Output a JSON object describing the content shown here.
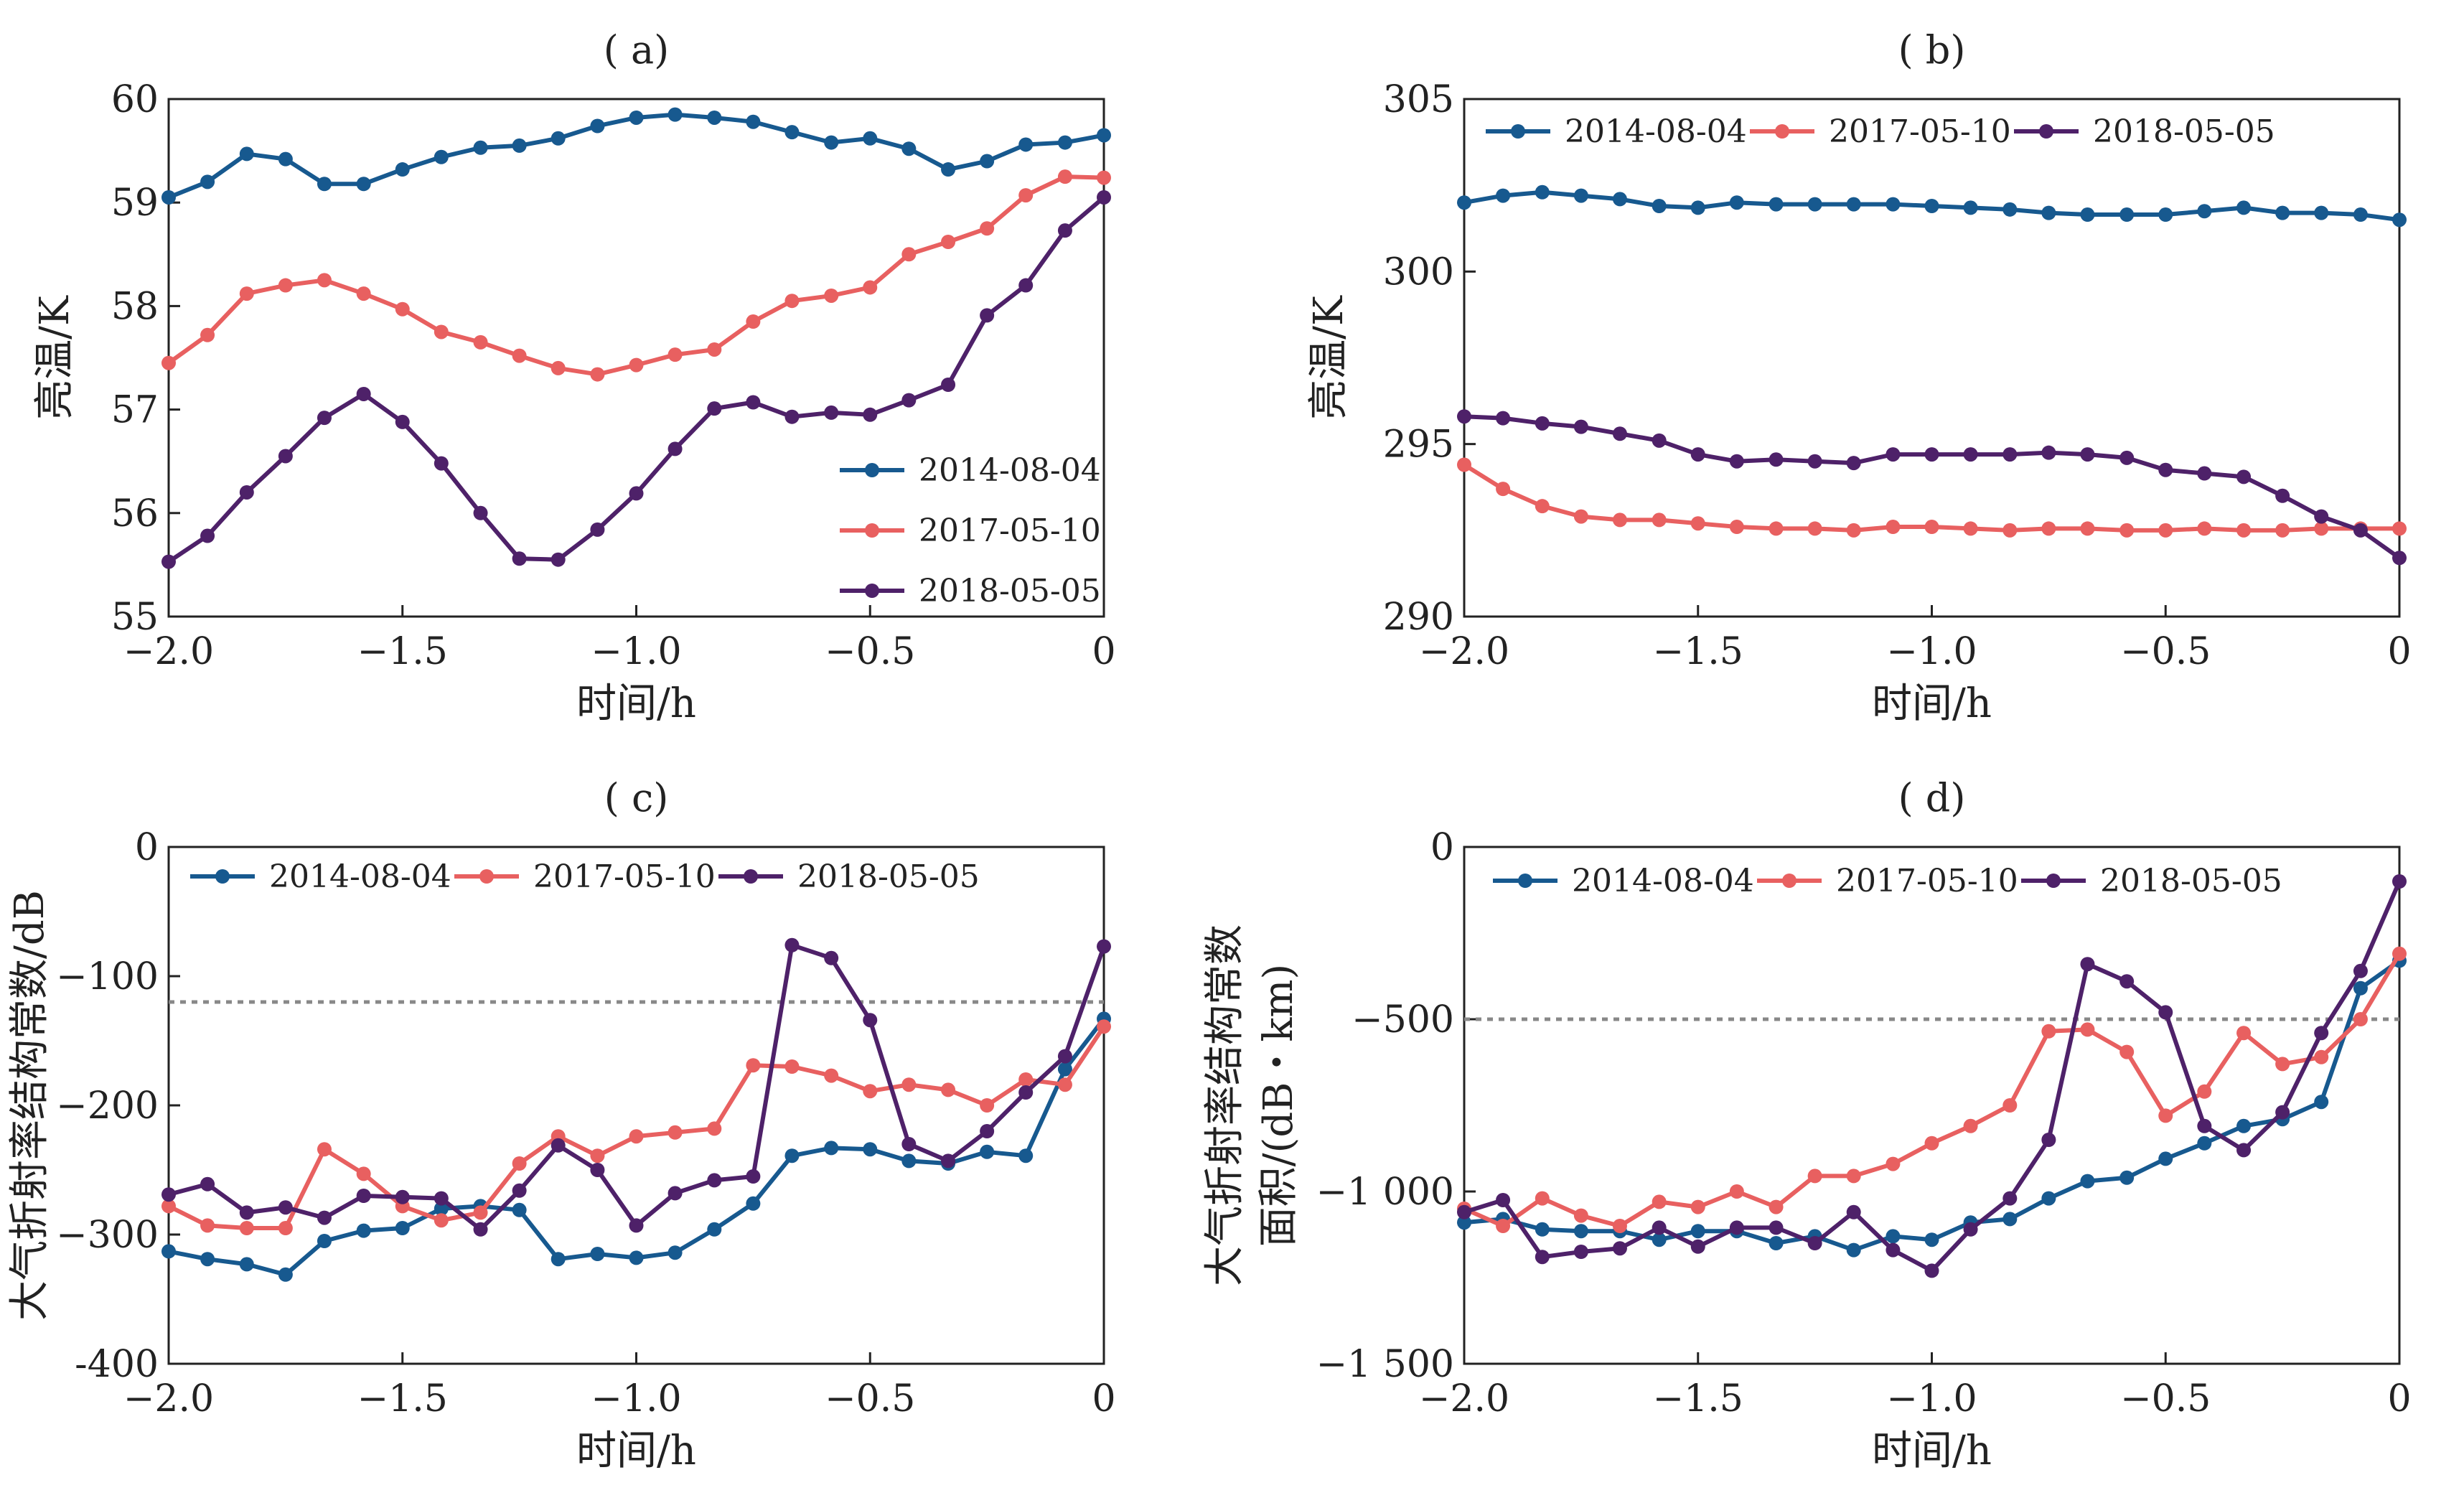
{
  "chart_data": [
    {
      "panel": "( a)",
      "type": "line",
      "xlabel": "时间/h",
      "ylabel": "亮温/K",
      "xlim": [
        -2.0,
        0
      ],
      "ylim": [
        55,
        60
      ],
      "xticks": [
        -2.0,
        -1.5,
        -1.0,
        -0.5,
        0
      ],
      "xtick_labels": [
        "−2.0",
        "−1.5",
        "−1.0",
        "−0.5",
        "0"
      ],
      "yticks": [
        55,
        56,
        57,
        58,
        59,
        60
      ],
      "ytick_labels": [
        "55",
        "56",
        "57",
        "58",
        "59",
        "60"
      ],
      "legend_position": "bottom-right",
      "x": [
        -2.0,
        -1.917,
        -1.833,
        -1.75,
        -1.667,
        -1.583,
        -1.5,
        -1.417,
        -1.333,
        -1.25,
        -1.167,
        -1.083,
        -1.0,
        -0.917,
        -0.833,
        -0.75,
        -0.667,
        -0.583,
        -0.5,
        -0.417,
        -0.333,
        -0.25,
        -0.167,
        -0.083,
        0
      ],
      "series": [
        {
          "name": "2014-08-04",
          "color": "#17598f",
          "values": [
            59.05,
            59.2,
            59.47,
            59.42,
            59.18,
            59.18,
            59.32,
            59.44,
            59.53,
            59.55,
            59.62,
            59.74,
            59.82,
            59.85,
            59.82,
            59.78,
            59.68,
            59.58,
            59.62,
            59.52,
            59.32,
            59.4,
            59.56,
            59.58,
            59.65
          ]
        },
        {
          "name": "2017-05-10",
          "color": "#e86060",
          "values": [
            57.45,
            57.72,
            58.12,
            58.2,
            58.25,
            58.12,
            57.97,
            57.75,
            57.65,
            57.52,
            57.4,
            57.34,
            57.43,
            57.53,
            57.58,
            57.85,
            58.05,
            58.1,
            58.18,
            58.5,
            58.62,
            58.75,
            59.07,
            59.25,
            59.24
          ]
        },
        {
          "name": "2018-05-05",
          "color": "#4e2169",
          "values": [
            55.53,
            55.78,
            56.2,
            56.55,
            56.92,
            57.15,
            56.88,
            56.48,
            56.0,
            55.56,
            55.55,
            55.84,
            56.19,
            56.62,
            57.01,
            57.07,
            56.93,
            56.97,
            56.95,
            57.09,
            57.24,
            57.91,
            58.2,
            58.73,
            59.05
          ]
        }
      ]
    },
    {
      "panel": "( b)",
      "type": "line",
      "xlabel": "时间/h",
      "ylabel": "亮温/K",
      "xlim": [
        -2.0,
        0
      ],
      "ylim": [
        290,
        305
      ],
      "xticks": [
        -2.0,
        -1.5,
        -1.0,
        -0.5,
        0
      ],
      "xtick_labels": [
        "−2.0",
        "−1.5",
        "−1.0",
        "−0.5",
        "0"
      ],
      "yticks": [
        290,
        295,
        300,
        305
      ],
      "ytick_labels": [
        "290",
        "295",
        "300",
        "305"
      ],
      "legend_position": "top",
      "x": [
        -2.0,
        -1.917,
        -1.833,
        -1.75,
        -1.667,
        -1.583,
        -1.5,
        -1.417,
        -1.333,
        -1.25,
        -1.167,
        -1.083,
        -1.0,
        -0.917,
        -0.833,
        -0.75,
        -0.667,
        -0.583,
        -0.5,
        -0.417,
        -0.333,
        -0.25,
        -0.167,
        -0.083,
        0
      ],
      "series": [
        {
          "name": "2014-08-04",
          "color": "#17598f",
          "values": [
            302.0,
            302.2,
            302.3,
            302.2,
            302.1,
            301.9,
            301.85,
            302.0,
            301.95,
            301.95,
            301.95,
            301.95,
            301.9,
            301.85,
            301.8,
            301.7,
            301.65,
            301.65,
            301.65,
            301.75,
            301.85,
            301.7,
            301.7,
            301.65,
            301.5
          ]
        },
        {
          "name": "2017-05-10",
          "color": "#e86060",
          "values": [
            294.4,
            293.7,
            293.2,
            292.9,
            292.8,
            292.8,
            292.7,
            292.6,
            292.55,
            292.55,
            292.5,
            292.6,
            292.6,
            292.55,
            292.5,
            292.55,
            292.55,
            292.5,
            292.5,
            292.55,
            292.5,
            292.5,
            292.55,
            292.55,
            292.55
          ]
        },
        {
          "name": "2018-05-05",
          "color": "#4e2169",
          "values": [
            295.8,
            295.75,
            295.6,
            295.5,
            295.3,
            295.1,
            294.7,
            294.5,
            294.55,
            294.5,
            294.45,
            294.7,
            294.7,
            294.7,
            294.7,
            294.75,
            294.7,
            294.6,
            294.25,
            294.15,
            294.05,
            293.5,
            292.9,
            292.5,
            291.7
          ]
        }
      ]
    },
    {
      "panel": "( c)",
      "type": "line",
      "xlabel": "时间/h",
      "ylabel": "大气折射率结构常数/dB",
      "xlim": [
        -2.0,
        0
      ],
      "ylim": [
        -400,
        0
      ],
      "xticks": [
        -2.0,
        -1.5,
        -1.0,
        -0.5,
        0
      ],
      "xtick_labels": [
        "−2.0",
        "−1.5",
        "−1.0",
        "−0.5",
        "0"
      ],
      "yticks": [
        -400,
        -300,
        -200,
        -100,
        0
      ],
      "ytick_labels": [
        "-400",
        "−300",
        "−200",
        "−100",
        "0"
      ],
      "reference_line": -120,
      "legend_position": "top",
      "x": [
        -2.0,
        -1.917,
        -1.833,
        -1.75,
        -1.667,
        -1.583,
        -1.5,
        -1.417,
        -1.333,
        -1.25,
        -1.167,
        -1.083,
        -1.0,
        -0.917,
        -0.833,
        -0.75,
        -0.667,
        -0.583,
        -0.5,
        -0.417,
        -0.333,
        -0.25,
        -0.167,
        -0.083,
        0
      ],
      "series": [
        {
          "name": "2014-08-04",
          "color": "#17598f",
          "values": [
            -313,
            -319,
            -323,
            -331,
            -305,
            -297,
            -295,
            -280,
            -278,
            -281,
            -319,
            -315,
            -318,
            -314,
            -296,
            -276,
            -239,
            -233,
            -234,
            -243,
            -245,
            -236,
            -239,
            -172,
            -133
          ]
        },
        {
          "name": "2017-05-10",
          "color": "#e86060",
          "values": [
            -278,
            -293,
            -295,
            -295,
            -234,
            -253,
            -278,
            -289,
            -283,
            -245,
            -224,
            -239,
            -224,
            -221,
            -218,
            -169,
            -170,
            -177,
            -189,
            -184,
            -188,
            -200,
            -180,
            -184,
            -139
          ]
        },
        {
          "name": "2018-05-05",
          "color": "#4e2169",
          "values": [
            -269,
            -261,
            -283,
            -279,
            -287,
            -270,
            -271,
            -272,
            -296,
            -266,
            -231,
            -250,
            -293,
            -268,
            -258,
            -255,
            -76,
            -86,
            -134,
            -230,
            -243,
            -220,
            -190,
            -162,
            -77
          ]
        }
      ]
    },
    {
      "panel": "( d)",
      "type": "line",
      "xlabel": "时间/h",
      "ylabel": "大气折射率结构常数",
      "ylabel_line2": "面积/(dB・km)",
      "xlim": [
        -2.0,
        0
      ],
      "ylim": [
        -1500,
        0
      ],
      "xticks": [
        -2.0,
        -1.5,
        -1.0,
        -0.5,
        0
      ],
      "xtick_labels": [
        "−2.0",
        "−1.5",
        "−1.0",
        "−0.5",
        "0"
      ],
      "yticks": [
        -1500,
        -1000,
        -500,
        0
      ],
      "ytick_labels": [
        "−1 500",
        "−1 000",
        "−500",
        "0"
      ],
      "reference_line": -500,
      "legend_position": "top",
      "x": [
        -2.0,
        -1.917,
        -1.833,
        -1.75,
        -1.667,
        -1.583,
        -1.5,
        -1.417,
        -1.333,
        -1.25,
        -1.167,
        -1.083,
        -1.0,
        -0.917,
        -0.833,
        -0.75,
        -0.667,
        -0.583,
        -0.5,
        -0.417,
        -0.333,
        -0.25,
        -0.167,
        -0.083,
        0
      ],
      "series": [
        {
          "name": "2014-08-04",
          "color": "#17598f",
          "values": [
            -1090,
            -1080,
            -1110,
            -1115,
            -1115,
            -1140,
            -1115,
            -1115,
            -1150,
            -1130,
            -1170,
            -1130,
            -1140,
            -1090,
            -1080,
            -1020,
            -970,
            -960,
            -905,
            -860,
            -810,
            -790,
            -740,
            -410,
            -330
          ]
        },
        {
          "name": "2017-05-10",
          "color": "#e86060",
          "values": [
            -1050,
            -1100,
            -1020,
            -1070,
            -1100,
            -1030,
            -1045,
            -1000,
            -1045,
            -955,
            -955,
            -920,
            -860,
            -810,
            -750,
            -535,
            -530,
            -595,
            -780,
            -710,
            -540,
            -630,
            -610,
            -500,
            -310
          ]
        },
        {
          "name": "2018-05-05",
          "color": "#4e2169",
          "values": [
            -1060,
            -1025,
            -1190,
            -1175,
            -1165,
            -1105,
            -1160,
            -1105,
            -1105,
            -1150,
            -1060,
            -1170,
            -1230,
            -1110,
            -1020,
            -850,
            -340,
            -390,
            -480,
            -810,
            -880,
            -770,
            -540,
            -360,
            -100
          ]
        }
      ]
    }
  ]
}
